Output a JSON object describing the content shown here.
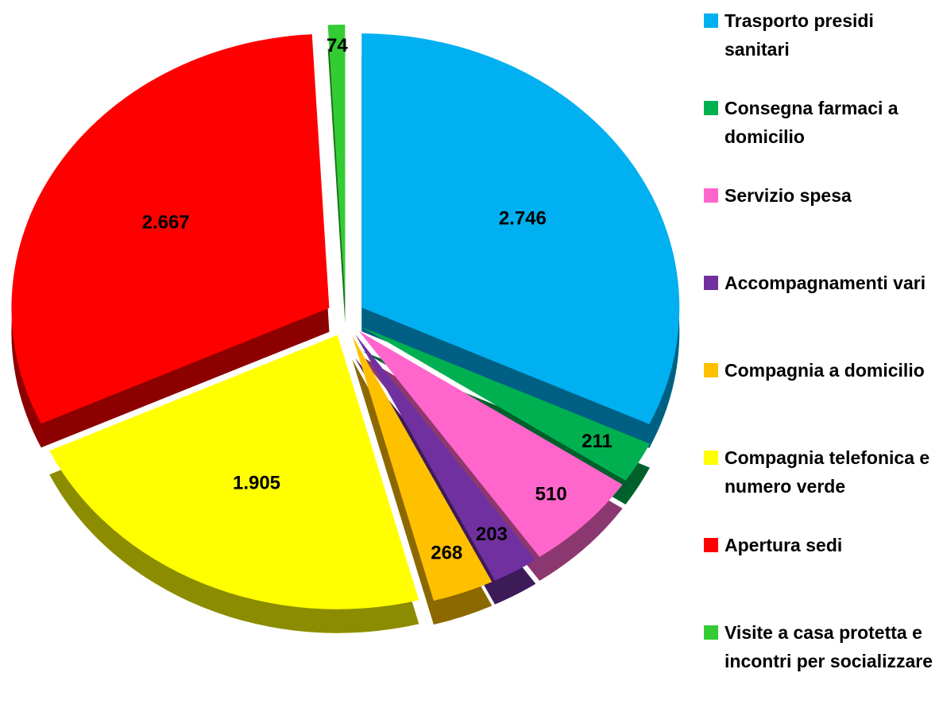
{
  "chart_data": {
    "type": "pie",
    "categories": [
      "Trasporto presidi sanitari",
      "Consegna farmaci a domicilio",
      "Servizio spesa",
      "Accompagnamenti vari",
      "Compagnia a domicilio",
      "Compagnia telefonica e numero verde",
      "Apertura sedi",
      "Visite a casa protetta e incontri per socializzare"
    ],
    "values": [
      2746,
      211,
      510,
      203,
      268,
      1905,
      2667,
      74
    ],
    "value_labels": [
      "2.746",
      "211",
      "510",
      "203",
      "268",
      "1.905",
      "2.667",
      "74"
    ],
    "colors": [
      "#00b0f0",
      "#00b050",
      "#ff66cc",
      "#7030a0",
      "#ffc000",
      "#ffff00",
      "#ff0000",
      "#33cc33"
    ],
    "legend": "right"
  }
}
